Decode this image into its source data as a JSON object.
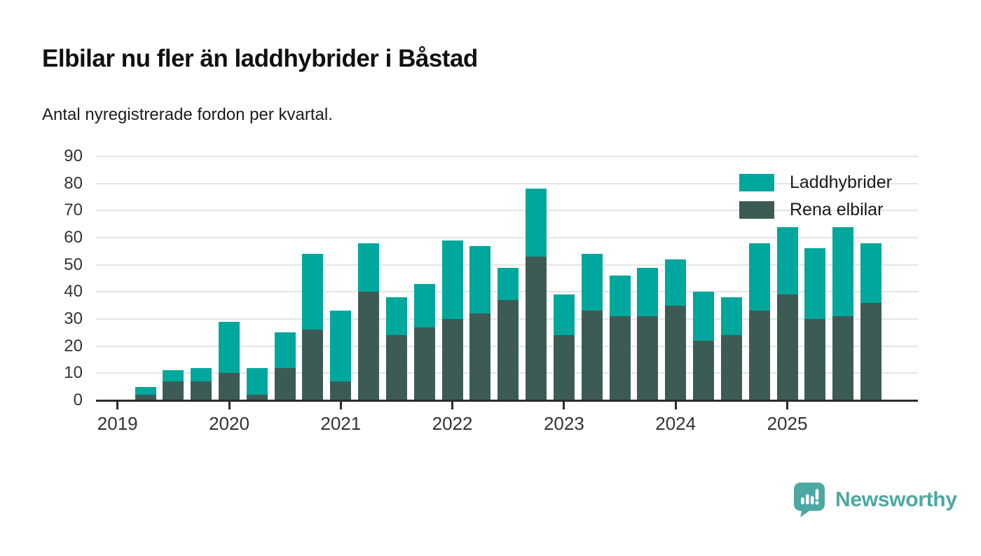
{
  "title": "Elbilar nu fler än laddhybrider i Båstad",
  "subtitle": "Antal nyregistrerade fordon per kvartal.",
  "colors": {
    "laddhybrider": "#00A79D",
    "rena_elbilar": "#3D5B55",
    "gridline": "#E4E4E4",
    "axis": "#2B2B2B",
    "brand": "#4BA8A3"
  },
  "legend": [
    {
      "label": "Laddhybrider",
      "color": "#00A79D"
    },
    {
      "label": "Rena elbilar",
      "color": "#3D5B55"
    }
  ],
  "footer": {
    "brand": "Newsworthy"
  },
  "chart_data": {
    "type": "bar",
    "stacked": true,
    "title": "Elbilar nu fler än laddhybrider i Båstad",
    "subtitle": "Antal nyregistrerade fordon per kvartal.",
    "xlabel": "",
    "ylabel": "",
    "ylim": [
      0,
      90
    ],
    "yticks": [
      0,
      10,
      20,
      30,
      40,
      50,
      60,
      70,
      80,
      90
    ],
    "grid": true,
    "legend_position": "top-right",
    "x": [
      "2019 Q1",
      "2019 Q2",
      "2019 Q3",
      "2019 Q4",
      "2020 Q1",
      "2020 Q2",
      "2020 Q3",
      "2020 Q4",
      "2021 Q1",
      "2021 Q2",
      "2021 Q3",
      "2021 Q4",
      "2022 Q1",
      "2022 Q2",
      "2022 Q3",
      "2022 Q4",
      "2023 Q1",
      "2023 Q2",
      "2023 Q3",
      "2023 Q4",
      "2024 Q1",
      "2024 Q2",
      "2024 Q3",
      "2024 Q4",
      "2025 Q1",
      "2025 Q2",
      "2025 Q3",
      "2025 Q4"
    ],
    "xticks": [
      "2019",
      "2020",
      "2021",
      "2022",
      "2023",
      "2024",
      "2025"
    ],
    "xtick_quarter_indices": [
      0,
      4,
      8,
      12,
      16,
      20,
      24
    ],
    "series": [
      {
        "name": "Rena elbilar",
        "color": "#3D5B55",
        "values": [
          0,
          2,
          7,
          7,
          10,
          2,
          12,
          26,
          7,
          40,
          24,
          27,
          30,
          32,
          37,
          53,
          24,
          33,
          31,
          31,
          35,
          22,
          24,
          33,
          39,
          30,
          31,
          36
        ]
      },
      {
        "name": "Laddhybrider",
        "color": "#00A79D",
        "values": [
          0,
          3,
          4,
          5,
          19,
          10,
          13,
          28,
          26,
          18,
          14,
          16,
          29,
          25,
          12,
          25,
          15,
          21,
          15,
          18,
          17,
          18,
          14,
          25,
          25,
          26,
          33,
          22
        ]
      }
    ],
    "totals": [
      0,
      5,
      11,
      12,
      29,
      12,
      25,
      54,
      33,
      58,
      38,
      43,
      59,
      57,
      49,
      78,
      39,
      54,
      46,
      49,
      52,
      40,
      38,
      58,
      64,
      56,
      64,
      58
    ]
  }
}
